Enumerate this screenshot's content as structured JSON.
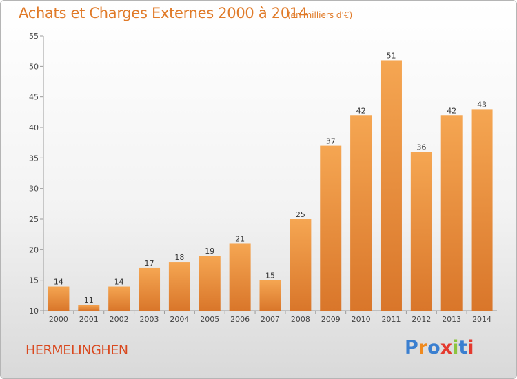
{
  "title": "Achats et Charges Externes 2000 à 2014",
  "subtitle": "(en milliers d'€)",
  "commune": "HERMELINGHEN",
  "logo": {
    "letters": [
      "P",
      "r",
      "o",
      "x",
      "i",
      "t",
      "i"
    ],
    "colors": [
      "#3a7fd0",
      "#f08a1e",
      "#3a7fd0",
      "#e43a2f",
      "#8cc43f",
      "#3a7fd0",
      "#e43a2f"
    ]
  },
  "colors": {
    "bar_light": "#f5a652",
    "bar_dark": "#d9762a",
    "title": "#e07a28",
    "commune": "#d9481e"
  },
  "chart_data": {
    "type": "bar",
    "title": "Achats et Charges Externes 2000 à 2014",
    "subtitle": "(en milliers d'€)",
    "categories": [
      "2000",
      "2001",
      "2002",
      "2003",
      "2004",
      "2005",
      "2006",
      "2007",
      "2008",
      "2009",
      "2010",
      "2011",
      "2012",
      "2013",
      "2014"
    ],
    "values": [
      14,
      11,
      14,
      17,
      18,
      19,
      21,
      15,
      25,
      37,
      42,
      51,
      36,
      42,
      43
    ],
    "xlabel": "",
    "ylabel": "",
    "ylim": [
      10,
      55
    ],
    "yticks": [
      10,
      15,
      20,
      25,
      30,
      35,
      40,
      45,
      50,
      55
    ],
    "grid": false,
    "legend": "none"
  }
}
